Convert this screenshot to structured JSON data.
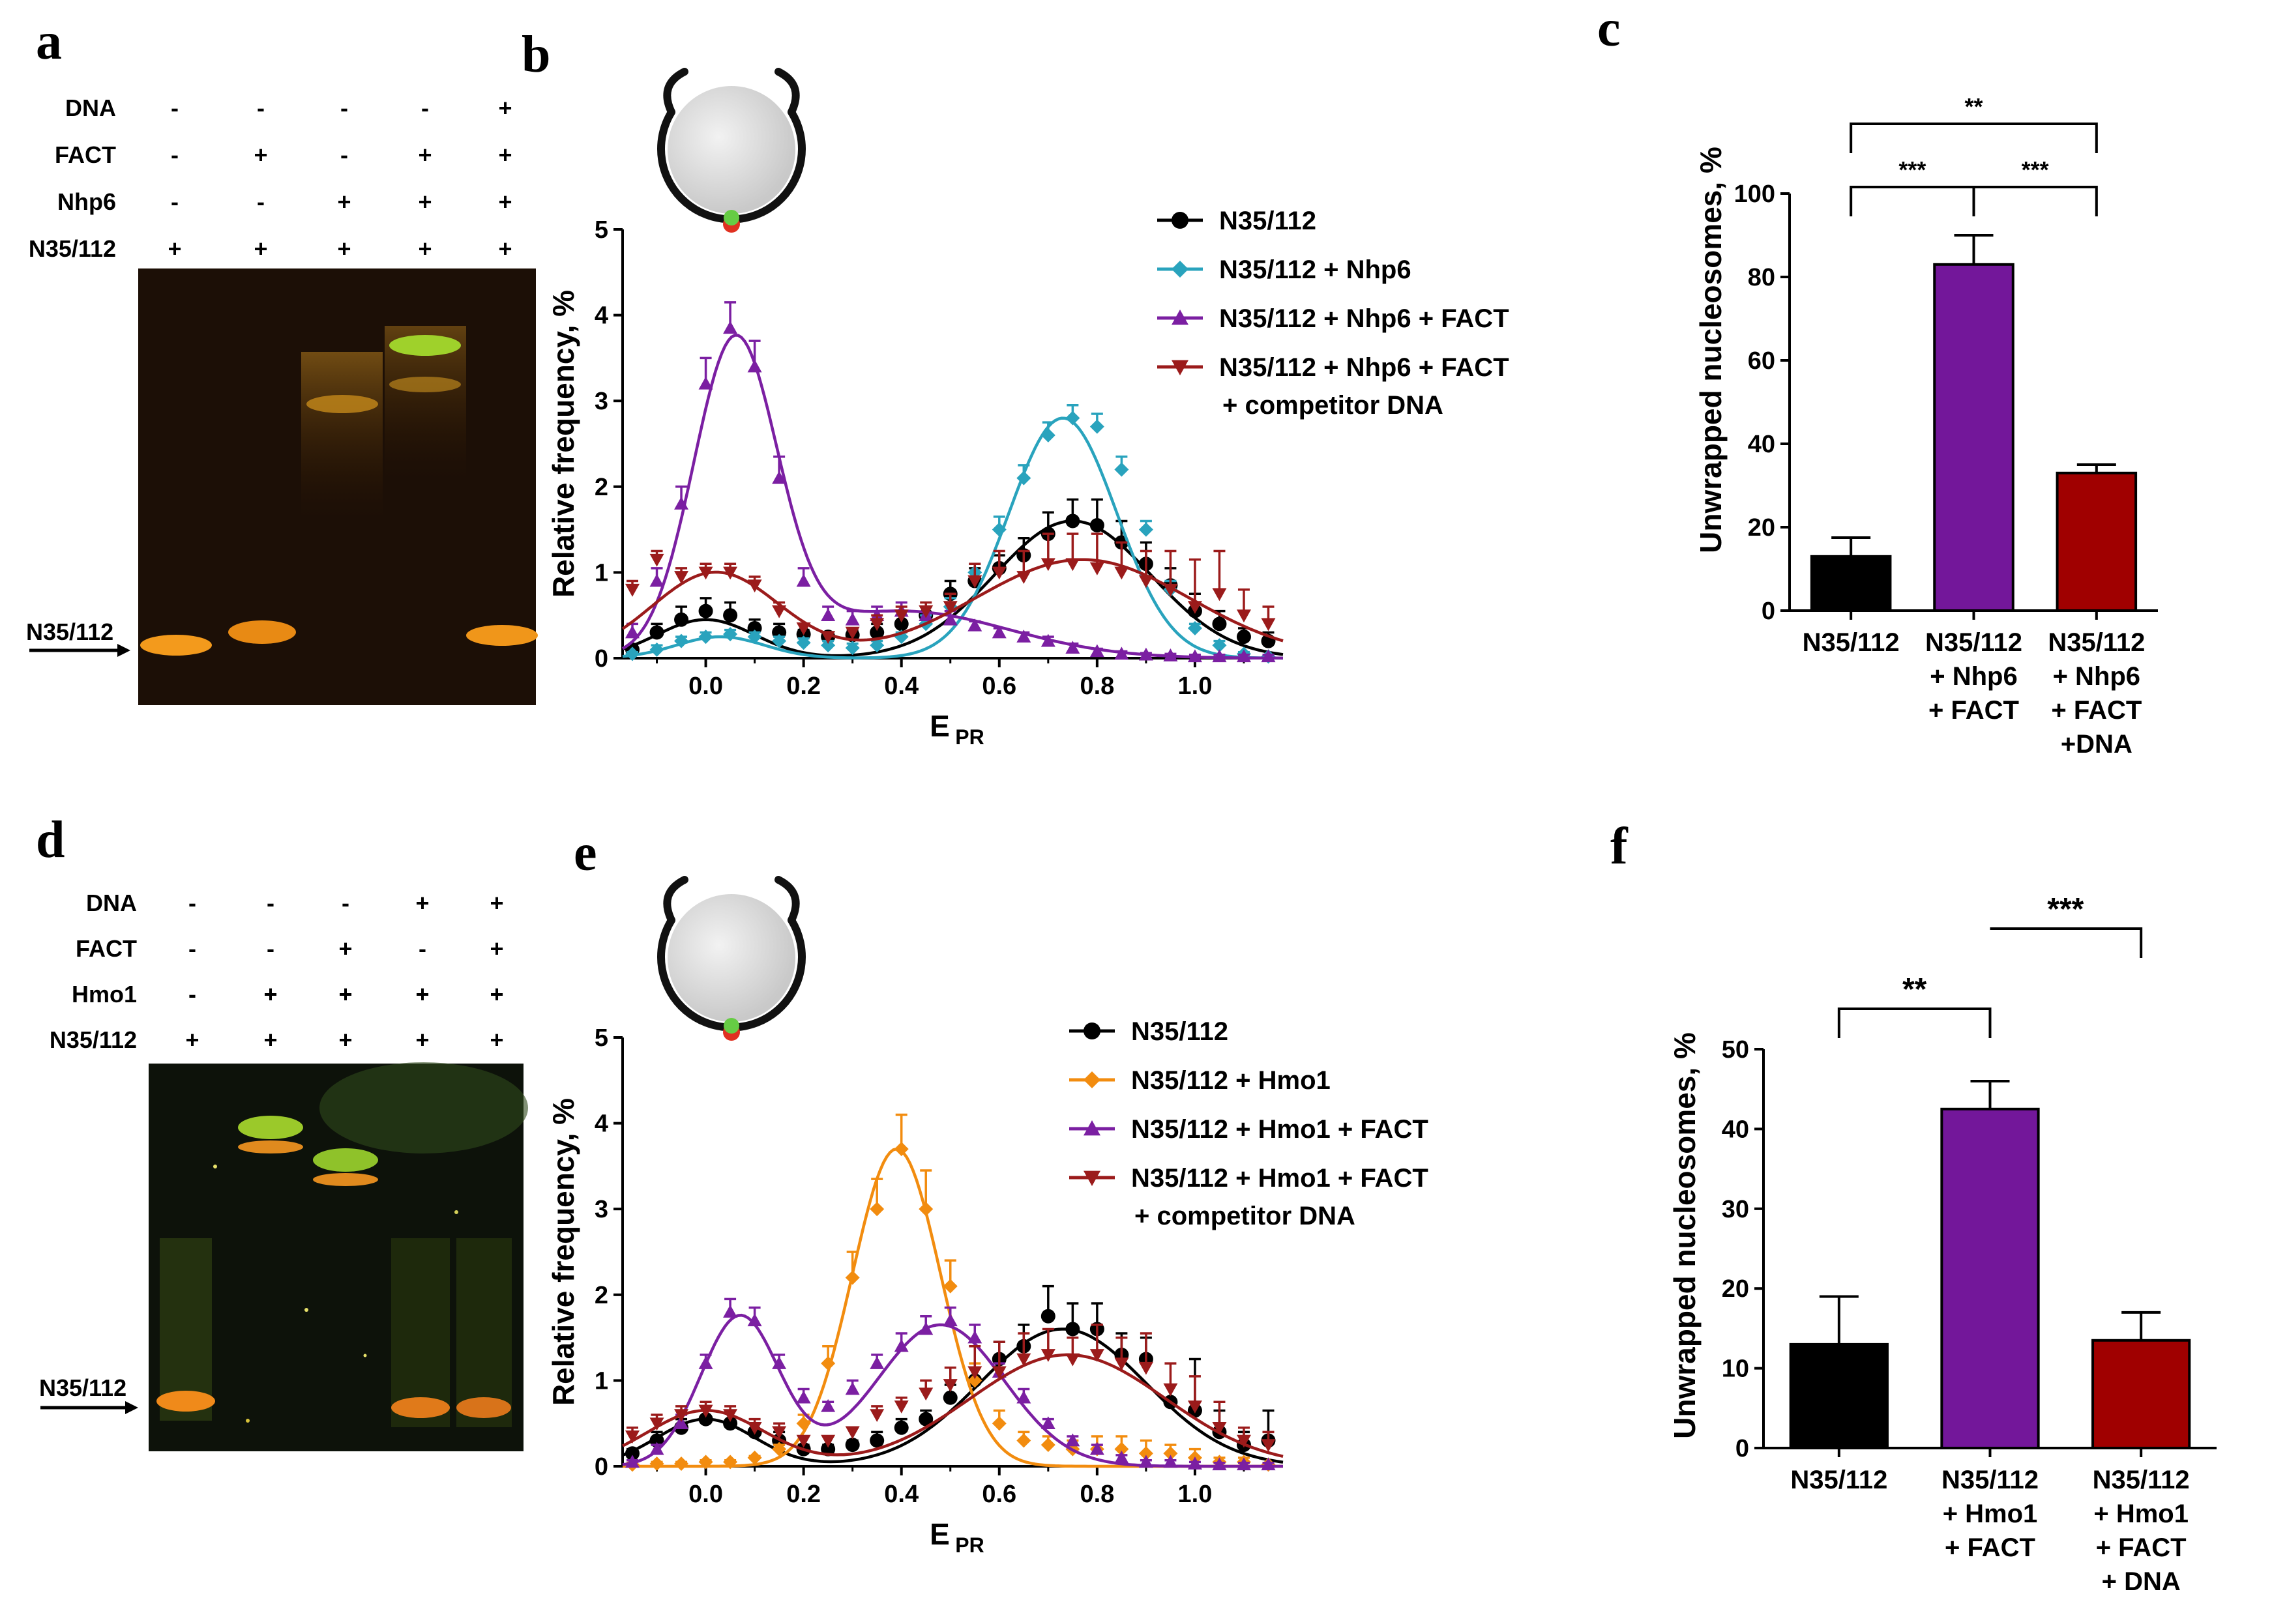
{
  "panels": {
    "a": {
      "letter": "a",
      "rows": [
        {
          "label": "DNA",
          "marks": [
            "-",
            "-",
            "-",
            "-",
            "+"
          ]
        },
        {
          "label": "FACT",
          "marks": [
            "-",
            "+",
            "-",
            "+",
            "+"
          ]
        },
        {
          "label": "Nhp6",
          "marks": [
            "-",
            "-",
            "+",
            "+",
            "+"
          ]
        },
        {
          "label": "N35/112",
          "marks": [
            "+",
            "+",
            "+",
            "+",
            "+"
          ]
        }
      ],
      "arrow_label": "N35/112"
    },
    "d": {
      "letter": "d",
      "rows": [
        {
          "label": "DNA",
          "marks": [
            "-",
            "-",
            "-",
            "+",
            "+"
          ]
        },
        {
          "label": "FACT",
          "marks": [
            "-",
            "-",
            "+",
            "-",
            "+"
          ]
        },
        {
          "label": "Hmo1",
          "marks": [
            "-",
            "+",
            "+",
            "+",
            "+"
          ]
        },
        {
          "label": "N35/112",
          "marks": [
            "+",
            "+",
            "+",
            "+",
            "+"
          ]
        }
      ],
      "arrow_label": "N35/112"
    },
    "b": {
      "letter": "b"
    },
    "c": {
      "letter": "c"
    },
    "e": {
      "letter": "e"
    },
    "f": {
      "letter": "f"
    }
  },
  "colors": {
    "black": "#000000",
    "cyan": "#29a3bd",
    "purple": "#7b1fa2",
    "red": "#9b1b1b",
    "orange": "#f28c0f",
    "c_bar2": "#73179a",
    "c_bar3": "#a00000"
  },
  "chart_data": [
    {
      "id": "b",
      "type": "line",
      "xlabel": "E",
      "xlabel_sub": "PR",
      "ylabel": "Relative frequency, %",
      "xlim": [
        -0.17,
        1.18
      ],
      "ylim": [
        0,
        5
      ],
      "xticks": [
        "0.0",
        "0.2",
        "0.4",
        "0.6",
        "0.8",
        "1.0"
      ],
      "yticks": [
        "0",
        "1",
        "2",
        "3",
        "4",
        "5"
      ],
      "series": [
        {
          "name": "N35/112",
          "color": "#000000",
          "marker": "circle",
          "x": [
            -0.15,
            -0.1,
            -0.05,
            0.0,
            0.05,
            0.1,
            0.15,
            0.2,
            0.25,
            0.3,
            0.35,
            0.4,
            0.45,
            0.5,
            0.55,
            0.6,
            0.65,
            0.7,
            0.75,
            0.8,
            0.85,
            0.9,
            0.95,
            1.0,
            1.05,
            1.1,
            1.15
          ],
          "y": [
            0.1,
            0.3,
            0.45,
            0.55,
            0.5,
            0.35,
            0.3,
            0.28,
            0.25,
            0.27,
            0.3,
            0.4,
            0.5,
            0.75,
            0.9,
            1.05,
            1.2,
            1.45,
            1.6,
            1.55,
            1.35,
            1.1,
            0.85,
            0.55,
            0.4,
            0.25,
            0.2
          ],
          "err": [
            0.05,
            0.1,
            0.15,
            0.15,
            0.15,
            0.1,
            0.1,
            0.05,
            0.05,
            0.05,
            0.1,
            0.1,
            0.1,
            0.15,
            0.15,
            0.15,
            0.2,
            0.25,
            0.25,
            0.3,
            0.25,
            0.25,
            0.2,
            0.2,
            0.15,
            0.1,
            0.1
          ],
          "fit": [
            [
              0.45,
              0.0,
              0.1
            ],
            [
              1.6,
              0.75,
              0.16
            ]
          ]
        },
        {
          "name": "N35/112 + Nhp6",
          "color": "#29a3bd",
          "marker": "diamond",
          "x": [
            -0.15,
            -0.1,
            -0.05,
            0.0,
            0.05,
            0.1,
            0.15,
            0.2,
            0.25,
            0.3,
            0.35,
            0.4,
            0.45,
            0.5,
            0.55,
            0.6,
            0.65,
            0.7,
            0.75,
            0.8,
            0.85,
            0.9,
            0.95,
            1.0,
            1.05,
            1.1,
            1.15
          ],
          "y": [
            0.05,
            0.1,
            0.2,
            0.25,
            0.28,
            0.25,
            0.2,
            0.18,
            0.15,
            0.12,
            0.15,
            0.25,
            0.4,
            0.6,
            1.0,
            1.5,
            2.1,
            2.6,
            2.8,
            2.7,
            2.2,
            1.5,
            0.8,
            0.35,
            0.15,
            0.05,
            0.02
          ],
          "err": [
            0.02,
            0.05,
            0.05,
            0.05,
            0.05,
            0.05,
            0.05,
            0.05,
            0.05,
            0.05,
            0.05,
            0.05,
            0.1,
            0.1,
            0.1,
            0.15,
            0.15,
            0.15,
            0.15,
            0.15,
            0.15,
            0.1,
            0.1,
            0.05,
            0.05,
            0.02,
            0.02
          ],
          "fit": [
            [
              0.25,
              0.03,
              0.09
            ],
            [
              2.8,
              0.73,
              0.11
            ]
          ]
        },
        {
          "name": "N35/112 + Nhp6 + FACT",
          "color": "#7b1fa2",
          "marker": "triangle",
          "x": [
            -0.15,
            -0.1,
            -0.05,
            0.0,
            0.05,
            0.1,
            0.15,
            0.2,
            0.25,
            0.3,
            0.35,
            0.4,
            0.45,
            0.5,
            0.55,
            0.6,
            0.65,
            0.7,
            0.75,
            0.8,
            0.85,
            0.9,
            0.95,
            1.0,
            1.05,
            1.1,
            1.15
          ],
          "y": [
            0.3,
            0.9,
            1.8,
            3.2,
            3.85,
            3.4,
            2.1,
            0.9,
            0.5,
            0.45,
            0.5,
            0.55,
            0.5,
            0.45,
            0.38,
            0.3,
            0.25,
            0.2,
            0.12,
            0.08,
            0.05,
            0.04,
            0.03,
            0.02,
            0.02,
            0.02,
            0.02
          ],
          "err": [
            0.1,
            0.15,
            0.2,
            0.3,
            0.3,
            0.3,
            0.25,
            0.15,
            0.1,
            0.1,
            0.1,
            0.1,
            0.1,
            0.1,
            0.05,
            0.05,
            0.05,
            0.05,
            0.05,
            0.03,
            0.03,
            0.02,
            0.02,
            0.02,
            0.02,
            0.02,
            0.02
          ],
          "fit": [
            [
              3.6,
              0.06,
              0.085
            ],
            [
              0.55,
              0.4,
              0.22
            ]
          ]
        },
        {
          "name": "N35/112 + Nhp6 + FACT + competitor DNA",
          "color": "#9b1b1b",
          "marker": "down-triangle",
          "x": [
            -0.15,
            -0.1,
            -0.05,
            0.0,
            0.05,
            0.1,
            0.15,
            0.2,
            0.25,
            0.3,
            0.35,
            0.4,
            0.45,
            0.5,
            0.55,
            0.6,
            0.65,
            0.7,
            0.75,
            0.8,
            0.85,
            0.9,
            0.95,
            1.0,
            1.05,
            1.1,
            1.15
          ],
          "y": [
            0.8,
            1.15,
            0.95,
            1.0,
            1.0,
            0.85,
            0.55,
            0.35,
            0.25,
            0.3,
            0.4,
            0.5,
            0.55,
            0.6,
            0.9,
            1.0,
            0.95,
            1.1,
            1.1,
            1.05,
            1.0,
            0.9,
            0.8,
            0.6,
            0.75,
            0.5,
            0.4
          ],
          "err": [
            0.1,
            0.1,
            0.1,
            0.1,
            0.1,
            0.1,
            0.1,
            0.05,
            0.05,
            0.05,
            0.1,
            0.1,
            0.1,
            0.15,
            0.2,
            0.25,
            0.3,
            0.35,
            0.35,
            0.4,
            0.35,
            0.35,
            0.45,
            0.55,
            0.5,
            0.3,
            0.2
          ],
          "fit": [
            [
              1.0,
              0.02,
              0.13
            ],
            [
              1.15,
              0.77,
              0.22
            ]
          ]
        }
      ]
    },
    {
      "id": "c",
      "type": "bar",
      "ylabel": "Unwrapped nucleosomes, %",
      "ylim": [
        0,
        100
      ],
      "yticks": [
        "0",
        "20",
        "40",
        "60",
        "80",
        "100"
      ],
      "categories": [
        [
          "N35/112"
        ],
        [
          "N35/112",
          "+ Nhp6",
          "+ FACT"
        ],
        [
          "N35/112",
          "+ Nhp6",
          "+ FACT",
          "+DNA"
        ]
      ],
      "values": [
        13,
        83,
        33
      ],
      "errors": [
        4.5,
        7,
        2
      ],
      "colors": [
        "#000000",
        "#73179a",
        "#a00000"
      ],
      "significance": [
        {
          "from": 0,
          "to": 2,
          "label": "**",
          "level": 3
        },
        {
          "from": 0,
          "to": 1,
          "label": "***",
          "level": 2
        },
        {
          "from": 1,
          "to": 2,
          "label": "***",
          "level": 2
        }
      ]
    },
    {
      "id": "e",
      "type": "line",
      "xlabel": "E",
      "xlabel_sub": "PR",
      "ylabel": "Relative frequency, %",
      "xlim": [
        -0.17,
        1.18
      ],
      "ylim": [
        0,
        5
      ],
      "xticks": [
        "0.0",
        "0.2",
        "0.4",
        "0.6",
        "0.8",
        "1.0"
      ],
      "yticks": [
        "0",
        "1",
        "2",
        "3",
        "4",
        "5"
      ],
      "series": [
        {
          "name": "N35/112",
          "color": "#000000",
          "marker": "circle",
          "x": [
            -0.15,
            -0.1,
            -0.05,
            0.0,
            0.05,
            0.1,
            0.15,
            0.2,
            0.25,
            0.3,
            0.35,
            0.4,
            0.45,
            0.5,
            0.55,
            0.6,
            0.65,
            0.7,
            0.75,
            0.8,
            0.85,
            0.9,
            0.95,
            1.0,
            1.05,
            1.1,
            1.15
          ],
          "y": [
            0.15,
            0.3,
            0.45,
            0.55,
            0.5,
            0.4,
            0.3,
            0.2,
            0.2,
            0.25,
            0.3,
            0.45,
            0.55,
            0.8,
            1.0,
            1.25,
            1.4,
            1.75,
            1.6,
            1.6,
            1.3,
            1.25,
            0.75,
            0.65,
            0.4,
            0.25,
            0.3
          ],
          "err": [
            0.05,
            0.1,
            0.1,
            0.15,
            0.15,
            0.1,
            0.1,
            0.05,
            0.05,
            0.05,
            0.1,
            0.1,
            0.1,
            0.15,
            0.15,
            0.2,
            0.25,
            0.35,
            0.3,
            0.3,
            0.25,
            0.25,
            0.2,
            0.6,
            0.25,
            0.15,
            0.35
          ],
          "fit": [
            [
              0.55,
              0.0,
              0.1
            ],
            [
              1.6,
              0.73,
              0.17
            ]
          ]
        },
        {
          "name": "N35/112 + Hmo1",
          "color": "#f28c0f",
          "marker": "diamond",
          "x": [
            -0.15,
            -0.1,
            -0.05,
            0.0,
            0.05,
            0.1,
            0.15,
            0.2,
            0.25,
            0.3,
            0.35,
            0.4,
            0.45,
            0.5,
            0.55,
            0.6,
            0.65,
            0.7,
            0.75,
            0.8,
            0.85,
            0.9,
            0.95,
            1.0,
            1.05,
            1.1,
            1.15
          ],
          "y": [
            0.02,
            0.03,
            0.03,
            0.05,
            0.05,
            0.1,
            0.2,
            0.5,
            1.2,
            2.2,
            3.0,
            3.7,
            3.0,
            2.1,
            1.0,
            0.5,
            0.3,
            0.25,
            0.2,
            0.2,
            0.2,
            0.15,
            0.15,
            0.1,
            0.05,
            0.05,
            0.02
          ],
          "err": [
            0.02,
            0.02,
            0.02,
            0.02,
            0.02,
            0.02,
            0.05,
            0.1,
            0.2,
            0.3,
            0.35,
            0.4,
            0.45,
            0.3,
            0.2,
            0.15,
            0.1,
            0.1,
            0.1,
            0.15,
            0.15,
            0.15,
            0.1,
            0.1,
            0.05,
            0.05,
            0.02
          ],
          "fit": [
            [
              3.7,
              0.39,
              0.09
            ]
          ]
        },
        {
          "name": "N35/112 + Hmo1 + FACT",
          "color": "#7b1fa2",
          "marker": "triangle",
          "x": [
            -0.15,
            -0.1,
            -0.05,
            0.0,
            0.05,
            0.1,
            0.15,
            0.2,
            0.25,
            0.3,
            0.35,
            0.4,
            0.45,
            0.5,
            0.55,
            0.6,
            0.65,
            0.7,
            0.75,
            0.8,
            0.85,
            0.9,
            0.95,
            1.0,
            1.05,
            1.1,
            1.15
          ],
          "y": [
            0.05,
            0.2,
            0.5,
            1.2,
            1.8,
            1.7,
            1.2,
            0.8,
            0.7,
            0.9,
            1.2,
            1.4,
            1.6,
            1.7,
            1.5,
            1.1,
            0.8,
            0.5,
            0.3,
            0.2,
            0.1,
            0.05,
            0.05,
            0.03,
            0.02,
            0.02,
            0.02
          ],
          "err": [
            0.02,
            0.05,
            0.1,
            0.1,
            0.15,
            0.15,
            0.1,
            0.1,
            0.05,
            0.1,
            0.1,
            0.15,
            0.15,
            0.15,
            0.15,
            0.1,
            0.1,
            0.05,
            0.05,
            0.05,
            0.03,
            0.02,
            0.02,
            0.02,
            0.02,
            0.02,
            0.02
          ],
          "fit": [
            [
              1.75,
              0.07,
              0.08
            ],
            [
              1.65,
              0.48,
              0.13
            ]
          ]
        },
        {
          "name": "N35/112 + Hmo1 + FACT + competitor DNA",
          "color": "#9b1b1b",
          "marker": "down-triangle",
          "x": [
            -0.15,
            -0.1,
            -0.05,
            0.0,
            0.05,
            0.1,
            0.15,
            0.2,
            0.25,
            0.3,
            0.35,
            0.4,
            0.45,
            0.5,
            0.55,
            0.6,
            0.65,
            0.7,
            0.75,
            0.8,
            0.85,
            0.9,
            0.95,
            1.0,
            1.05,
            1.1,
            1.15
          ],
          "y": [
            0.35,
            0.5,
            0.6,
            0.65,
            0.6,
            0.45,
            0.4,
            0.3,
            0.3,
            0.4,
            0.6,
            0.7,
            0.85,
            0.95,
            1.1,
            1.1,
            1.25,
            1.3,
            1.25,
            1.3,
            1.2,
            1.15,
            0.9,
            0.7,
            0.45,
            0.3,
            0.25
          ],
          "err": [
            0.1,
            0.1,
            0.1,
            0.1,
            0.1,
            0.1,
            0.1,
            0.05,
            0.05,
            0.05,
            0.1,
            0.1,
            0.15,
            0.2,
            0.3,
            0.35,
            0.3,
            0.3,
            0.25,
            0.35,
            0.3,
            0.4,
            0.3,
            0.35,
            0.3,
            0.15,
            0.15
          ],
          "fit": [
            [
              0.65,
              0.0,
              0.12
            ],
            [
              1.3,
              0.74,
              0.2
            ]
          ]
        }
      ]
    },
    {
      "id": "f",
      "type": "bar",
      "ylabel": "Unwrapped nucleosomes, %",
      "ylim": [
        0,
        50
      ],
      "yticks": [
        "0",
        "10",
        "20",
        "30",
        "40",
        "50"
      ],
      "categories": [
        [
          "N35/112"
        ],
        [
          "N35/112",
          "+ Hmo1",
          "+ FACT"
        ],
        [
          "N35/112",
          "+ Hmo1",
          "+ FACT",
          "+ DNA"
        ]
      ],
      "values": [
        13,
        42.5,
        13.5
      ],
      "errors": [
        6,
        3.5,
        3.5
      ],
      "colors": [
        "#000000",
        "#73179a",
        "#a00000"
      ],
      "significance": [
        {
          "from": 0,
          "to": 1,
          "label": "**",
          "level": 1
        },
        {
          "from": 1,
          "to": 2,
          "label": "***",
          "level": 2
        }
      ]
    }
  ]
}
